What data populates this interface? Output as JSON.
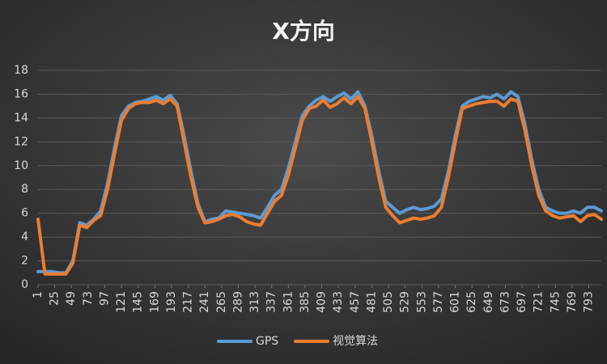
{
  "chart_data": {
    "type": "line",
    "title": "X方向",
    "x": [
      1,
      11,
      21,
      31,
      41,
      51,
      61,
      71,
      81,
      91,
      101,
      111,
      121,
      131,
      141,
      151,
      161,
      171,
      181,
      191,
      201,
      211,
      221,
      231,
      241,
      251,
      261,
      271,
      281,
      291,
      301,
      311,
      321,
      331,
      341,
      351,
      361,
      371,
      381,
      391,
      401,
      411,
      421,
      431,
      441,
      451,
      461,
      471,
      481,
      491,
      501,
      511,
      521,
      531,
      541,
      551,
      561,
      571,
      581,
      591,
      601,
      611,
      621,
      631,
      641,
      651,
      661,
      671,
      681,
      691,
      701,
      711,
      721,
      731,
      741,
      751,
      761,
      771,
      781,
      791,
      801,
      811
    ],
    "xlim": [
      1,
      811
    ],
    "xticks": [
      1,
      25,
      49,
      73,
      97,
      121,
      145,
      169,
      193,
      217,
      241,
      265,
      289,
      313,
      337,
      361,
      385,
      409,
      433,
      457,
      481,
      505,
      529,
      553,
      577,
      601,
      625,
      649,
      673,
      697,
      721,
      745,
      769,
      793
    ],
    "ylim": [
      0,
      18
    ],
    "yticks": [
      0,
      2,
      4,
      6,
      8,
      10,
      12,
      14,
      16,
      18
    ],
    "grid": true,
    "legend": "bottom",
    "series": [
      {
        "name": "GPS",
        "color": "#5b9bd5",
        "values": [
          1.1,
          1.1,
          1.1,
          1.0,
          1.0,
          2.0,
          5.2,
          5.0,
          5.5,
          6.2,
          8.5,
          11.5,
          14.2,
          15.0,
          15.3,
          15.4,
          15.6,
          15.8,
          15.5,
          15.9,
          15.2,
          12.5,
          9.5,
          6.8,
          5.3,
          5.5,
          5.6,
          6.2,
          6.1,
          6.0,
          5.9,
          5.8,
          5.6,
          6.5,
          7.5,
          8.0,
          9.8,
          12.0,
          14.2,
          15.0,
          15.5,
          15.8,
          15.4,
          15.8,
          16.1,
          15.6,
          16.2,
          15.0,
          12.5,
          9.5,
          7.0,
          6.5,
          6.0,
          6.3,
          6.5,
          6.3,
          6.4,
          6.6,
          7.2,
          9.5,
          12.5,
          15.0,
          15.4,
          15.6,
          15.8,
          15.7,
          16.0,
          15.6,
          16.2,
          15.8,
          13.5,
          10.5,
          8.0,
          6.5,
          6.2,
          6.0,
          6.0,
          6.2,
          6.0,
          6.5,
          6.5,
          6.2
        ]
      },
      {
        "name": "视觉算法",
        "color": "#ed7d31",
        "values": [
          5.5,
          0.9,
          0.9,
          0.9,
          0.9,
          1.8,
          5.0,
          4.8,
          5.4,
          5.8,
          8.0,
          11.0,
          13.8,
          14.8,
          15.2,
          15.3,
          15.3,
          15.5,
          15.2,
          15.6,
          15.0,
          12.0,
          9.0,
          6.5,
          5.2,
          5.3,
          5.5,
          5.8,
          5.9,
          5.7,
          5.3,
          5.1,
          5.0,
          6.0,
          7.0,
          7.5,
          9.2,
          11.5,
          13.8,
          14.8,
          15.0,
          15.5,
          14.9,
          15.2,
          15.7,
          15.2,
          15.8,
          14.8,
          12.0,
          9.0,
          6.5,
          5.8,
          5.2,
          5.4,
          5.6,
          5.5,
          5.6,
          5.8,
          6.5,
          9.0,
          12.0,
          14.8,
          15.0,
          15.2,
          15.3,
          15.4,
          15.4,
          15.0,
          15.6,
          15.4,
          13.0,
          10.0,
          7.5,
          6.2,
          5.8,
          5.6,
          5.7,
          5.8,
          5.3,
          5.8,
          5.9,
          5.5
        ]
      }
    ]
  }
}
